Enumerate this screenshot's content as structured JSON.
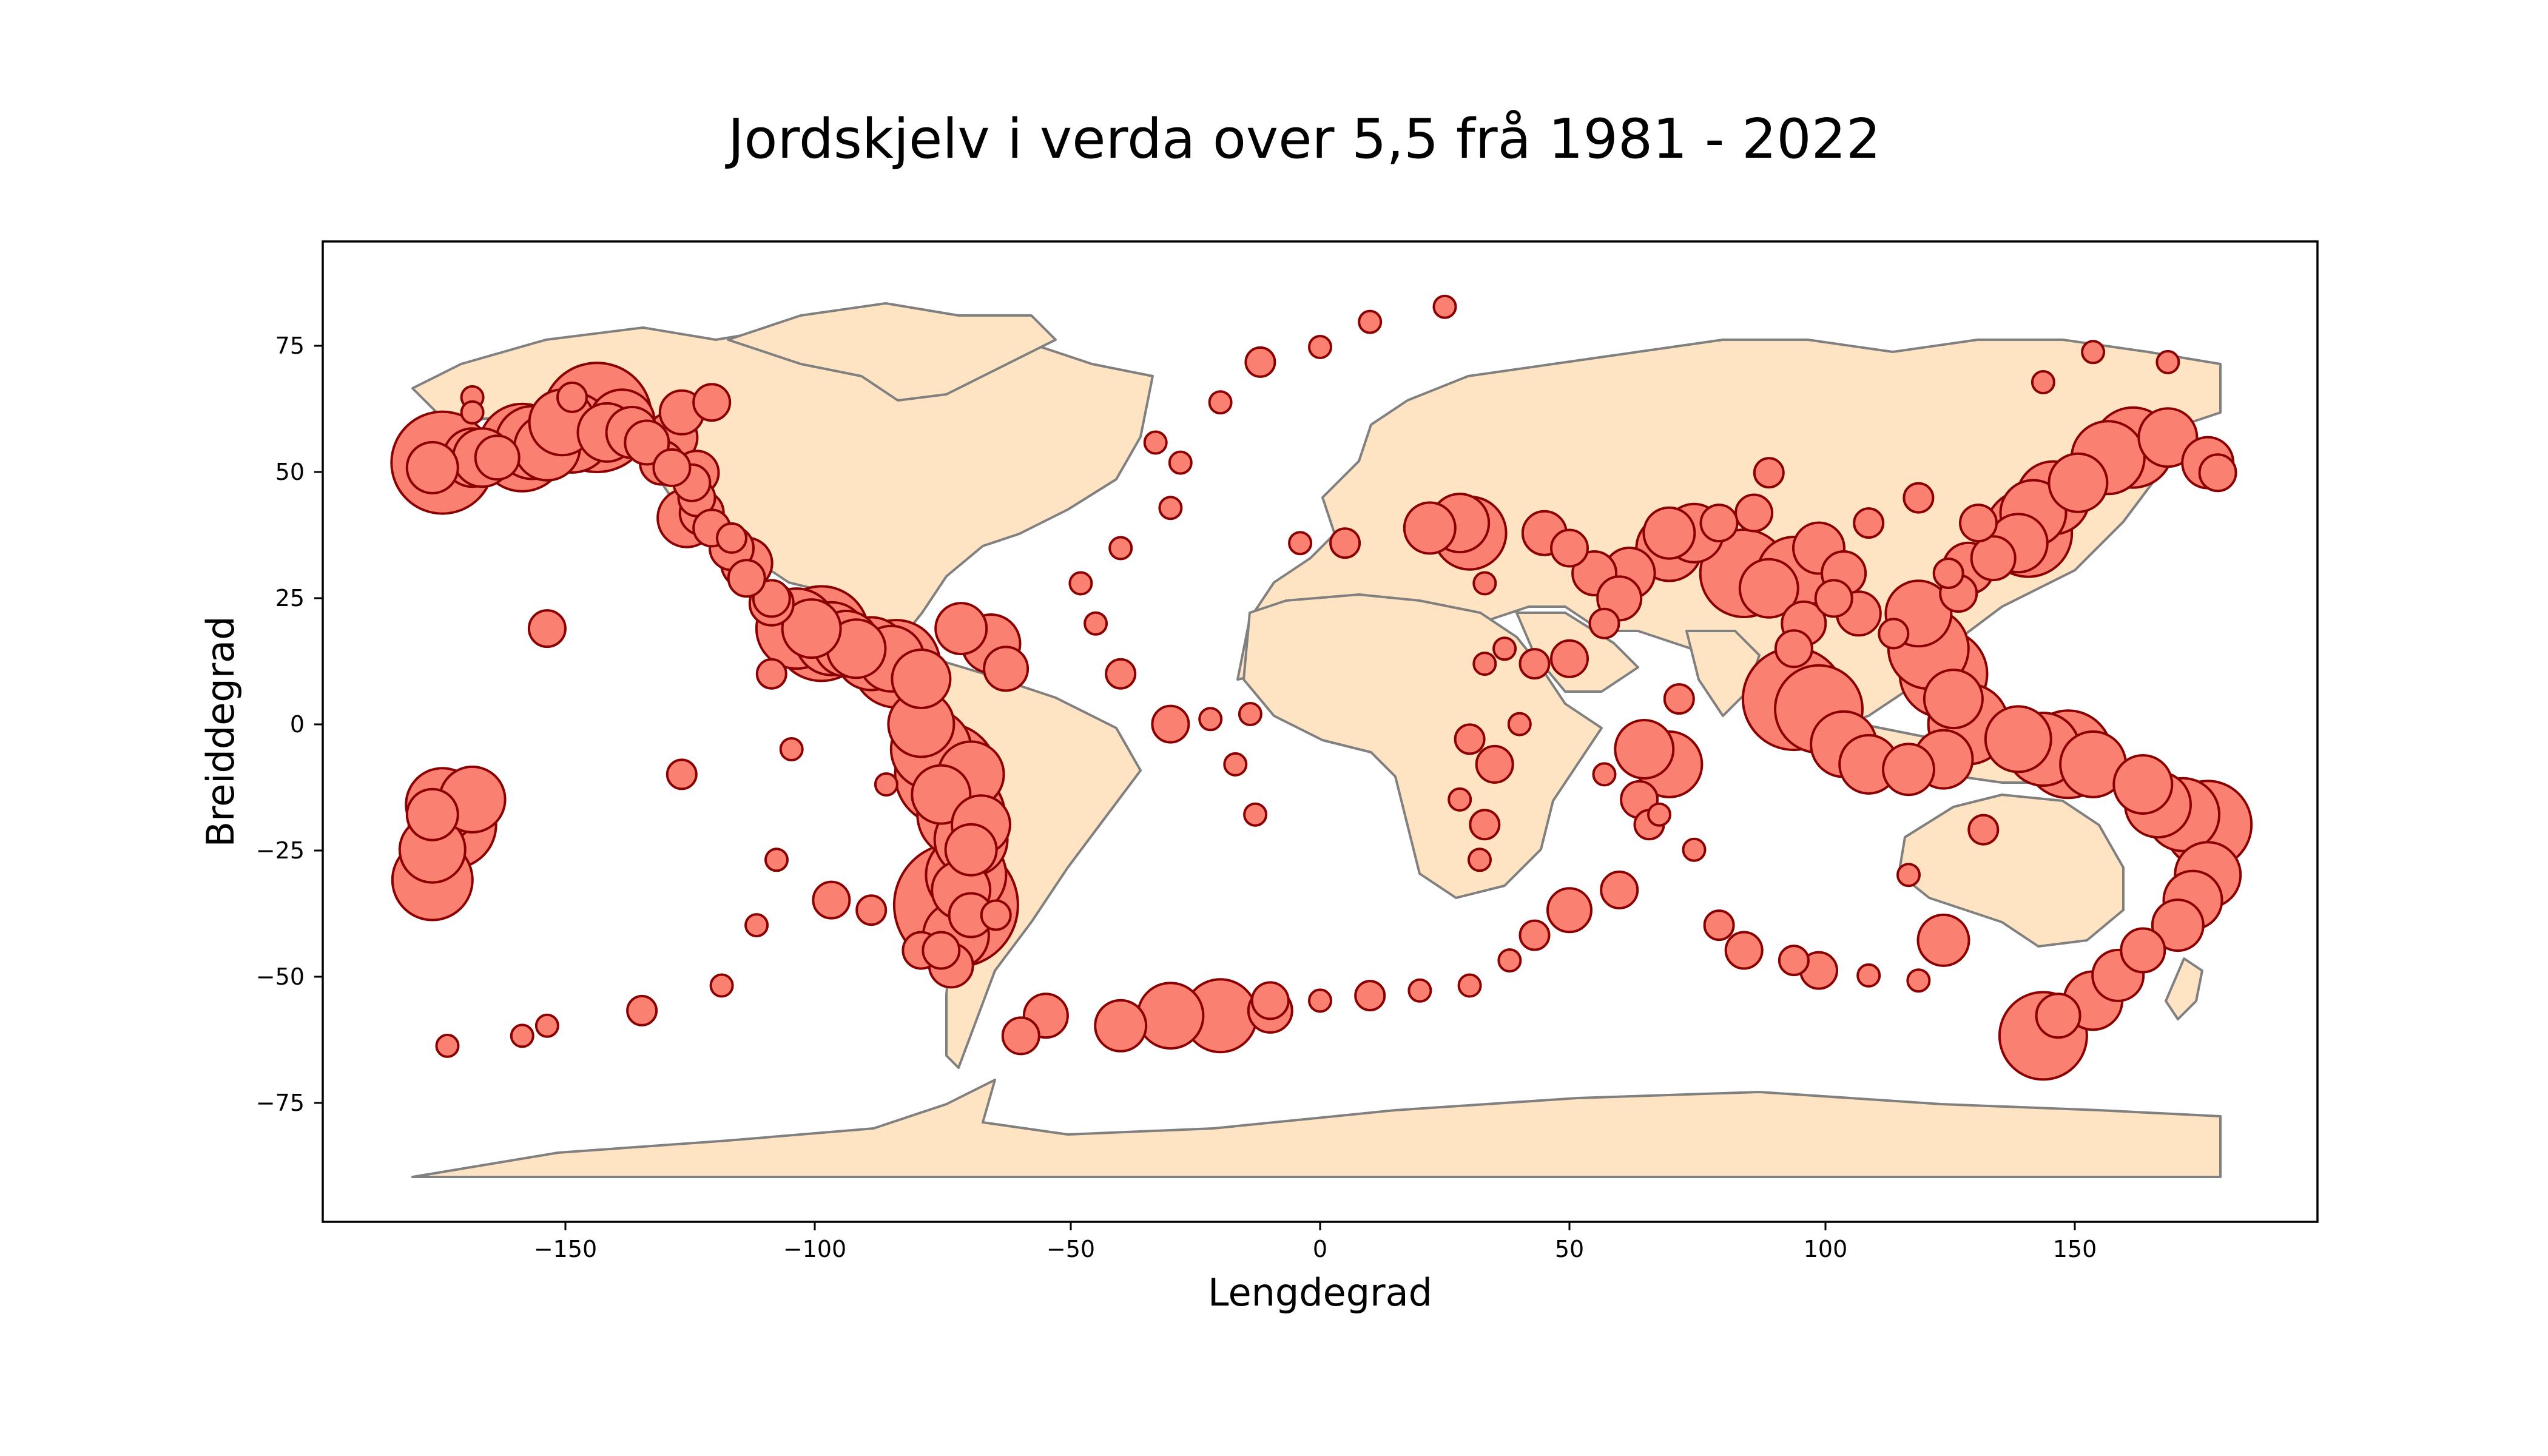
{
  "chart_data": {
    "type": "scatter",
    "title": "Jordskjelv i verda over 5,5 frå 1981 - 2022",
    "xlabel": "Lengdegrad",
    "ylabel": "Breiddegrad",
    "xlim": [
      -200,
      200
    ],
    "ylim": [
      -99,
      96
    ],
    "xticks": [
      -150,
      -100,
      -50,
      0,
      50,
      100,
      150
    ],
    "yticks": [
      -75,
      -50,
      -25,
      0,
      25,
      50,
      75
    ],
    "xtick_labels": [
      "−150",
      "−100",
      "−50",
      "0",
      "50",
      "100",
      "150"
    ],
    "ytick_labels": [
      "−75",
      "−50",
      "−25",
      "0",
      "25",
      "50",
      "75"
    ],
    "grid": false,
    "legend": "none",
    "colors": {
      "marker_fill": "#fa8072",
      "marker_edge": "#8b0000",
      "land": "#ffe4c4",
      "coastline": "#808080"
    },
    "series": [
      {
        "points": [
          [
            -176,
            52,
            14
          ],
          [
            -170,
            53,
            8
          ],
          [
            -160,
            55,
            12
          ],
          [
            -150,
            58,
            11
          ],
          [
            -145,
            61,
            15
          ],
          [
            -140,
            60,
            9
          ],
          [
            -130,
            57,
            7
          ],
          [
            -125,
            50,
            6
          ],
          [
            -125,
            45,
            5
          ],
          [
            -127,
            41,
            8
          ],
          [
            -118,
            35,
            6
          ],
          [
            -115,
            32,
            7
          ],
          [
            -110,
            25,
            5
          ],
          [
            -105,
            19,
            11
          ],
          [
            -100,
            18,
            13
          ],
          [
            -95,
            16,
            9
          ],
          [
            -90,
            14,
            10
          ],
          [
            -85,
            12,
            12
          ],
          [
            -80,
            9,
            8
          ],
          [
            -72,
            19,
            7
          ],
          [
            -66,
            16,
            8
          ],
          [
            -63,
            11,
            6
          ],
          [
            -80,
            0,
            9
          ],
          [
            -78,
            -5,
            11
          ],
          [
            -75,
            -10,
            14
          ],
          [
            -72,
            -18,
            12
          ],
          [
            -70,
            -23,
            10
          ],
          [
            -71,
            -30,
            11
          ],
          [
            -73,
            -36,
            17
          ],
          [
            -73,
            -42,
            9
          ],
          [
            -74,
            -48,
            6
          ],
          [
            -155,
            19,
            5
          ],
          [
            -176,
            -16,
            10
          ],
          [
            -174,
            -20,
            12
          ],
          [
            -178,
            -25,
            9
          ],
          [
            -178,
            -31,
            11
          ],
          [
            -170,
            -15,
            9
          ],
          [
            -128,
            -10,
            4
          ],
          [
            -109,
            -27,
            3
          ],
          [
            -113,
            -40,
            3
          ],
          [
            -120,
            -52,
            3
          ],
          [
            -136,
            -57,
            4
          ],
          [
            -155,
            -60,
            3
          ],
          [
            -175,
            -64,
            3
          ],
          [
            -160,
            -62,
            3
          ],
          [
            -98,
            -35,
            5
          ],
          [
            -90,
            -37,
            4
          ],
          [
            -87,
            -12,
            3
          ],
          [
            -106,
            -5,
            3
          ],
          [
            -110,
            10,
            4
          ],
          [
            -30,
            -58,
            9
          ],
          [
            -40,
            -60,
            7
          ],
          [
            -55,
            -58,
            6
          ],
          [
            -60,
            -62,
            5
          ],
          [
            -20,
            -58,
            10
          ],
          [
            -10,
            -57,
            6
          ],
          [
            -13,
            -18,
            3
          ],
          [
            -17,
            -8,
            3
          ],
          [
            -14,
            2,
            3
          ],
          [
            -22,
            1,
            3
          ],
          [
            -30,
            0,
            5
          ],
          [
            -40,
            10,
            4
          ],
          [
            -45,
            20,
            3
          ],
          [
            -48,
            28,
            3
          ],
          [
            -40,
            35,
            3
          ],
          [
            -30,
            43,
            3
          ],
          [
            -28,
            52,
            3
          ],
          [
            -33,
            56,
            3
          ],
          [
            -12,
            72,
            4
          ],
          [
            0,
            75,
            3
          ],
          [
            10,
            80,
            3
          ],
          [
            25,
            83,
            3
          ],
          [
            -20,
            64,
            3
          ],
          [
            -4,
            36,
            3
          ],
          [
            5,
            36,
            4
          ],
          [
            30,
            38,
            10
          ],
          [
            28,
            40,
            8
          ],
          [
            22,
            39,
            7
          ],
          [
            45,
            38,
            6
          ],
          [
            50,
            35,
            5
          ],
          [
            55,
            30,
            6
          ],
          [
            62,
            30,
            7
          ],
          [
            70,
            35,
            9
          ],
          [
            75,
            38,
            8
          ],
          [
            85,
            30,
            12
          ],
          [
            90,
            27,
            8
          ],
          [
            95,
            30,
            10
          ],
          [
            100,
            35,
            7
          ],
          [
            105,
            30,
            6
          ],
          [
            110,
            40,
            4
          ],
          [
            120,
            22,
            9
          ],
          [
            122,
            15,
            11
          ],
          [
            125,
            10,
            12
          ],
          [
            127,
            5,
            8
          ],
          [
            130,
            0,
            11
          ],
          [
            100,
            3,
            12
          ],
          [
            95,
            5,
            14
          ],
          [
            105,
            -4,
            9
          ],
          [
            110,
            -8,
            8
          ],
          [
            118,
            -9,
            7
          ],
          [
            125,
            -7,
            8
          ],
          [
            140,
            -3,
            9
          ],
          [
            145,
            -5,
            10
          ],
          [
            150,
            -6,
            12
          ],
          [
            155,
            -8,
            9
          ],
          [
            165,
            -12,
            8
          ],
          [
            168,
            -16,
            9
          ],
          [
            173,
            -18,
            10
          ],
          [
            178,
            -20,
            12
          ],
          [
            -178,
            -18,
            7
          ],
          [
            178,
            -30,
            9
          ],
          [
            175,
            -35,
            8
          ],
          [
            172,
            -40,
            7
          ],
          [
            165,
            -45,
            6
          ],
          [
            160,
            -50,
            7
          ],
          [
            155,
            -55,
            8
          ],
          [
            148,
            -58,
            6
          ],
          [
            145,
            -62,
            12
          ],
          [
            142,
            38,
            12
          ],
          [
            143,
            42,
            9
          ],
          [
            147,
            45,
            10
          ],
          [
            152,
            48,
            8
          ],
          [
            158,
            53,
            10
          ],
          [
            163,
            55,
            11
          ],
          [
            170,
            57,
            8
          ],
          [
            178,
            52,
            7
          ],
          [
            180,
            50,
            5
          ],
          [
            140,
            36,
            8
          ],
          [
            135,
            33,
            6
          ],
          [
            130,
            31,
            7
          ],
          [
            128,
            26,
            5
          ],
          [
            120,
            45,
            4
          ],
          [
            90,
            50,
            4
          ],
          [
            87,
            42,
            5
          ],
          [
            80,
            40,
            5
          ],
          [
            70,
            38,
            7
          ],
          [
            60,
            25,
            6
          ],
          [
            57,
            20,
            4
          ],
          [
            50,
            13,
            5
          ],
          [
            43,
            12,
            4
          ],
          [
            37,
            15,
            3
          ],
          [
            33,
            28,
            3
          ],
          [
            30,
            -3,
            4
          ],
          [
            35,
            -8,
            5
          ],
          [
            33,
            12,
            3
          ],
          [
            40,
            0,
            3
          ],
          [
            28,
            -15,
            3
          ],
          [
            33,
            -20,
            4
          ],
          [
            32,
            -27,
            3
          ],
          [
            57,
            -10,
            3
          ],
          [
            68,
            -18,
            3
          ],
          [
            75,
            -25,
            3
          ],
          [
            80,
            -40,
            4
          ],
          [
            85,
            -45,
            5
          ],
          [
            95,
            -47,
            4
          ],
          [
            100,
            -49,
            5
          ],
          [
            110,
            -50,
            3
          ],
          [
            120,
            -51,
            3
          ],
          [
            133,
            -21,
            4
          ],
          [
            125,
            -43,
            7
          ],
          [
            118,
            -30,
            3
          ],
          [
            60,
            -33,
            5
          ],
          [
            50,
            -37,
            6
          ],
          [
            43,
            -42,
            4
          ],
          [
            38,
            -47,
            3
          ],
          [
            30,
            -52,
            3
          ],
          [
            20,
            -53,
            3
          ],
          [
            10,
            -54,
            4
          ],
          [
            0,
            -55,
            3
          ],
          [
            -10,
            -55,
            5
          ],
          [
            65,
            -5,
            8
          ],
          [
            70,
            -8,
            9
          ],
          [
            64,
            -15,
            5
          ],
          [
            66,
            -20,
            4
          ],
          [
            72,
            5,
            4
          ],
          [
            95,
            15,
            5
          ],
          [
            97,
            20,
            6
          ],
          [
            103,
            25,
            5
          ],
          [
            108,
            22,
            6
          ],
          [
            115,
            18,
            4
          ],
          [
            126,
            30,
            4
          ],
          [
            132,
            40,
            5
          ],
          [
            145,
            68,
            3
          ],
          [
            155,
            74,
            3
          ],
          [
            170,
            72,
            3
          ],
          [
            -128,
            62,
            6
          ],
          [
            -122,
            64,
            5
          ],
          [
            -150,
            65,
            4
          ],
          [
            -170,
            65,
            3
          ],
          [
            -170,
            62,
            3
          ],
          [
            -165,
            53,
            6
          ],
          [
            -155,
            55,
            9
          ],
          [
            -138,
            58,
            7
          ],
          [
            -132,
            52,
            6
          ],
          [
            -118,
            37,
            4
          ],
          [
            -70,
            -10,
            9
          ],
          [
            -76,
            -14,
            8
          ],
          [
            -68,
            -20,
            8
          ],
          [
            -70,
            -25,
            7
          ],
          [
            -72,
            -33,
            8
          ],
          [
            -70,
            -38,
            6
          ],
          [
            -65,
            -38,
            4
          ],
          [
            -80,
            -45,
            5
          ],
          [
            -76,
            -45,
            5
          ],
          [
            -86,
            13,
            9
          ],
          [
            -93,
            15,
            8
          ],
          [
            -98,
            17,
            10
          ],
          [
            -102,
            19,
            8
          ],
          [
            -110,
            24,
            6
          ],
          [
            -115,
            29,
            5
          ],
          [
            -122,
            39,
            5
          ],
          [
            -124,
            42,
            6
          ],
          [
            -126,
            48,
            5
          ],
          [
            -130,
            51,
            5
          ],
          [
            -135,
            56,
            6
          ],
          [
            -143,
            58,
            8
          ],
          [
            -152,
            60,
            9
          ],
          [
            -158,
            56,
            10
          ],
          [
            -168,
            53,
            8
          ],
          [
            -178,
            51,
            7
          ]
        ]
      }
    ]
  }
}
